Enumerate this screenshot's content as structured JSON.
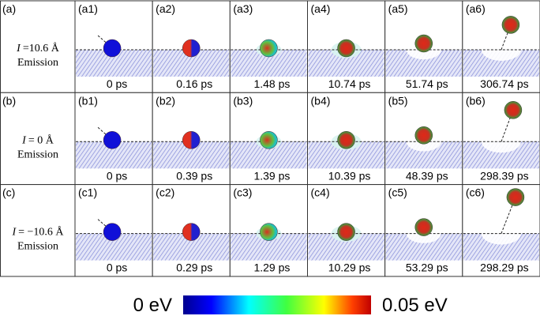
{
  "rows": [
    {
      "label": "(a)",
      "symbol": "I",
      "value": "=10.6 Å",
      "mode": "Emission",
      "panels": [
        {
          "label": "(a1)",
          "time": "0 ps"
        },
        {
          "label": "(a2)",
          "time": "0.16 ps"
        },
        {
          "label": "(a3)",
          "time": "1.48 ps"
        },
        {
          "label": "(a4)",
          "time": "10.74 ps"
        },
        {
          "label": "(a5)",
          "time": "51.74 ps"
        },
        {
          "label": "(a6)",
          "time": "306.74 ps"
        }
      ]
    },
    {
      "label": "(b)",
      "symbol": "I",
      "value": "= 0 Å",
      "mode": "Emission",
      "panels": [
        {
          "label": "(b1)",
          "time": "0 ps"
        },
        {
          "label": "(b2)",
          "time": "0.39 ps"
        },
        {
          "label": "(b3)",
          "time": "1.39 ps"
        },
        {
          "label": "(b4)",
          "time": "10.39 ps"
        },
        {
          "label": "(b5)",
          "time": "48.39 ps"
        },
        {
          "label": "(b6)",
          "time": "298.39 ps"
        }
      ]
    },
    {
      "label": "(c)",
      "symbol": "I",
      "value": "= −10.6 Å",
      "mode": "Emission",
      "panels": [
        {
          "label": "(c1)",
          "time": "0 ps"
        },
        {
          "label": "(c2)",
          "time": "0.29 ps"
        },
        {
          "label": "(c3)",
          "time": "1.29 ps"
        },
        {
          "label": "(c4)",
          "time": "10.29 ps"
        },
        {
          "label": "(c5)",
          "time": "53.29 ps"
        },
        {
          "label": "(c6)",
          "time": "298.29 ps"
        }
      ]
    }
  ],
  "colorbar": {
    "min_label": "0 eV",
    "max_label": "0.05 eV"
  }
}
